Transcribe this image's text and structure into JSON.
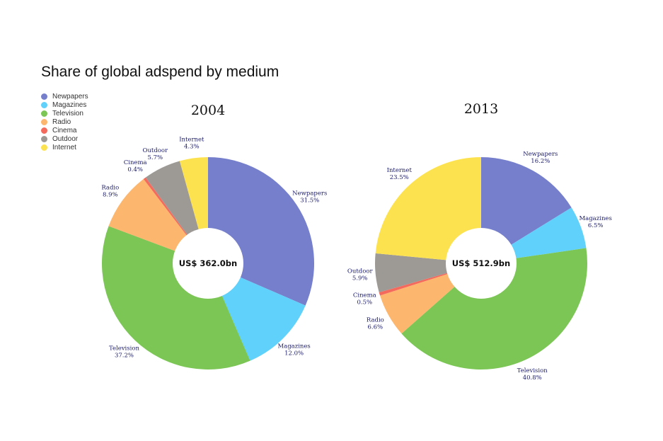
{
  "title": "Share of global adspend by medium",
  "chart_data": [
    {
      "type": "pie",
      "title": "2004",
      "center_label": "US$ 362.0bn",
      "slices": [
        {
          "label": "Newpapers",
          "value": 31.5,
          "value_label": "31.5%"
        },
        {
          "label": "Magazines",
          "value": 12.0,
          "value_label": "12.0%"
        },
        {
          "label": "Television",
          "value": 37.2,
          "value_label": "37.2%"
        },
        {
          "label": "Radio",
          "value": 8.9,
          "value_label": "8.9%"
        },
        {
          "label": "Cinema",
          "value": 0.4,
          "value_label": "0.4%"
        },
        {
          "label": "Outdoor",
          "value": 5.7,
          "value_label": "5.7%"
        },
        {
          "label": "Internet",
          "value": 4.3,
          "value_label": "4.3%"
        }
      ]
    },
    {
      "type": "pie",
      "title": "2013",
      "center_label": "US$ 512.9bn",
      "slices": [
        {
          "label": "Newpapers",
          "value": 16.2,
          "value_label": "16.2%"
        },
        {
          "label": "Magazines",
          "value": 6.5,
          "value_label": "6.5%"
        },
        {
          "label": "Television",
          "value": 40.8,
          "value_label": "40.8%"
        },
        {
          "label": "Radio",
          "value": 6.6,
          "value_label": "6.6%"
        },
        {
          "label": "Cinema",
          "value": 0.5,
          "value_label": "0.5%"
        },
        {
          "label": "Outdoor",
          "value": 5.9,
          "value_label": "5.9%"
        },
        {
          "label": "Internet",
          "value": 23.5,
          "value_label": "23.5%"
        }
      ]
    }
  ],
  "legend": {
    "placement": "top-left",
    "items": [
      {
        "label": "Newpapers",
        "color": "#767fcb"
      },
      {
        "label": "Magazines",
        "color": "#5fd1fb"
      },
      {
        "label": "Television",
        "color": "#7cc656"
      },
      {
        "label": "Radio",
        "color": "#fdb66d"
      },
      {
        "label": "Cinema",
        "color": "#f46a5d"
      },
      {
        "label": "Outdoor",
        "color": "#9d9a96"
      },
      {
        "label": "Internet",
        "color": "#fde24f"
      }
    ]
  }
}
